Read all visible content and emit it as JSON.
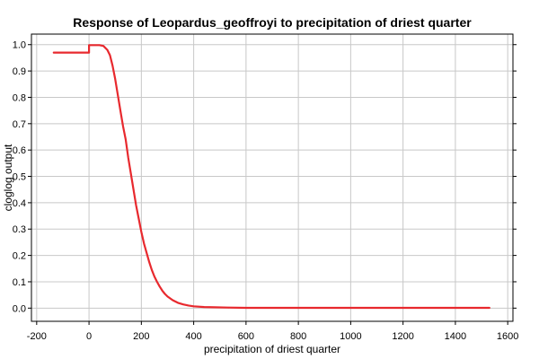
{
  "chart_data": {
    "type": "line",
    "title": "Response of Leopardus_geoffroyi to precipitation of driest quarter",
    "xlabel": "precipitation of driest quarter",
    "ylabel": "cloglog output",
    "xlim": [
      -220,
      1620
    ],
    "ylim": [
      -0.05,
      1.04
    ],
    "xticks": [
      -200,
      0,
      200,
      400,
      600,
      800,
      1000,
      1200,
      1400,
      1600
    ],
    "xtick_labels": [
      "-200",
      "0",
      "200",
      "400",
      "600",
      "800",
      "1000",
      "1200",
      "1400",
      "1600"
    ],
    "yticks": [
      0.0,
      0.1,
      0.2,
      0.3,
      0.4,
      0.5,
      0.6,
      0.7,
      0.8,
      0.9,
      1.0
    ],
    "ytick_labels": [
      "0.0",
      "0.1",
      "0.2",
      "0.3",
      "0.4",
      "0.5",
      "0.6",
      "0.7",
      "0.8",
      "0.9",
      "1.0"
    ],
    "grid": true,
    "line_color": "#e8292e",
    "series": [
      {
        "x": [
          -135,
          0,
          0,
          20,
          40,
          55,
          70,
          80,
          90,
          100,
          110,
          120,
          130,
          140,
          150,
          160,
          170,
          180,
          190,
          200,
          210,
          220,
          230,
          240,
          250,
          260,
          270,
          280,
          290,
          300,
          320,
          340,
          360,
          380,
          400,
          440,
          480,
          530,
          600,
          800,
          1000,
          1200,
          1400,
          1530
        ],
        "y": [
          0.97,
          0.97,
          0.998,
          0.998,
          0.998,
          0.995,
          0.98,
          0.96,
          0.92,
          0.87,
          0.81,
          0.75,
          0.69,
          0.64,
          0.57,
          0.51,
          0.45,
          0.39,
          0.34,
          0.29,
          0.245,
          0.21,
          0.175,
          0.145,
          0.12,
          0.1,
          0.082,
          0.066,
          0.054,
          0.044,
          0.03,
          0.02,
          0.014,
          0.01,
          0.007,
          0.004,
          0.003,
          0.002,
          0.001,
          0.001,
          0.001,
          0.001,
          0.001,
          0.001
        ]
      }
    ]
  }
}
